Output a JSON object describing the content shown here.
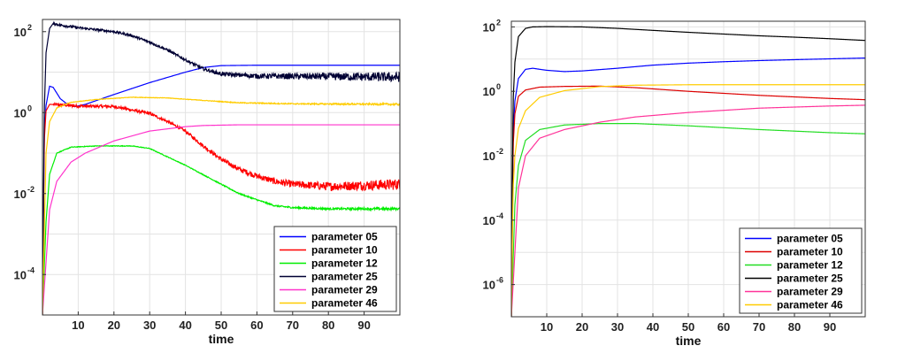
{
  "chart_data": [
    {
      "type": "line",
      "title": "",
      "xlabel": "time",
      "ylabel": "",
      "xlim": [
        0,
        100
      ],
      "ylim": [
        1e-05,
        200
      ],
      "yscale": "log",
      "grid": true,
      "legend_position": "bottom-right",
      "x_ticks": [
        "10",
        "20",
        "30",
        "40",
        "50",
        "60",
        "70",
        "80",
        "90"
      ],
      "y_ticks": [
        {
          "base": "10",
          "exp": "2",
          "value": 100
        },
        {
          "base": "10",
          "exp": "0",
          "value": 1
        },
        {
          "base": "10",
          "exp": "-2",
          "value": 0.01
        },
        {
          "base": "10",
          "exp": "-4",
          "value": 0.0001
        }
      ],
      "series": [
        {
          "name": "parameter 05",
          "color": "#0000ff",
          "noise": 0,
          "points": [
            [
              0,
              1e-05
            ],
            [
              0.5,
              0.3
            ],
            [
              1,
              1.5
            ],
            [
              2,
              4.5
            ],
            [
              3,
              4.2
            ],
            [
              5,
              2.2
            ],
            [
              7,
              1.6
            ],
            [
              9,
              1.4
            ],
            [
              12,
              1.6
            ],
            [
              20,
              2.8
            ],
            [
              30,
              5.5
            ],
            [
              40,
              10
            ],
            [
              45,
              13
            ],
            [
              50,
              14.5
            ],
            [
              60,
              14.8
            ],
            [
              80,
              14.8
            ],
            [
              100,
              14.8
            ]
          ]
        },
        {
          "name": "parameter 10",
          "color": "#ff0000",
          "noise": 0.035,
          "points": [
            [
              0,
              1e-05
            ],
            [
              0.5,
              0.2
            ],
            [
              1,
              1.1
            ],
            [
              2,
              1.6
            ],
            [
              5,
              1.55
            ],
            [
              10,
              1.45
            ],
            [
              20,
              1.42
            ],
            [
              30,
              0.95
            ],
            [
              35,
              0.6
            ],
            [
              40,
              0.35
            ],
            [
              45,
              0.15
            ],
            [
              50,
              0.07
            ],
            [
              55,
              0.04
            ],
            [
              60,
              0.027
            ],
            [
              65,
              0.02
            ],
            [
              70,
              0.017
            ],
            [
              80,
              0.015
            ],
            [
              90,
              0.016
            ],
            [
              100,
              0.017
            ]
          ]
        },
        {
          "name": "parameter 12",
          "color": "#00ee00",
          "noise": 0.008,
          "points": [
            [
              0,
              1e-05
            ],
            [
              1,
              0.002
            ],
            [
              2,
              0.03
            ],
            [
              4,
              0.1
            ],
            [
              8,
              0.14
            ],
            [
              15,
              0.15
            ],
            [
              25,
              0.15
            ],
            [
              30,
              0.13
            ],
            [
              40,
              0.05
            ],
            [
              50,
              0.017
            ],
            [
              55,
              0.01
            ],
            [
              60,
              0.007
            ],
            [
              65,
              0.005
            ],
            [
              70,
              0.0045
            ],
            [
              80,
              0.0042
            ],
            [
              100,
              0.0042
            ]
          ]
        },
        {
          "name": "parameter 25",
          "color": "#000033",
          "noise": 0.03,
          "points": [
            [
              0,
              1e-05
            ],
            [
              0.5,
              1
            ],
            [
              1,
              30
            ],
            [
              2,
              120
            ],
            [
              3,
              160
            ],
            [
              5,
              145
            ],
            [
              10,
              125
            ],
            [
              20,
              100
            ],
            [
              25,
              80
            ],
            [
              30,
              55
            ],
            [
              35,
              35
            ],
            [
              40,
              20
            ],
            [
              45,
              12
            ],
            [
              50,
              9
            ],
            [
              60,
              8
            ],
            [
              80,
              7.8
            ],
            [
              100,
              7.5
            ]
          ]
        },
        {
          "name": "parameter 29",
          "color": "#ff33cc",
          "noise": 0,
          "points": [
            [
              0,
              1e-05
            ],
            [
              1,
              0.0002
            ],
            [
              2,
              0.004
            ],
            [
              4,
              0.02
            ],
            [
              8,
              0.06
            ],
            [
              12,
              0.1
            ],
            [
              20,
              0.2
            ],
            [
              30,
              0.35
            ],
            [
              40,
              0.45
            ],
            [
              45,
              0.48
            ],
            [
              55,
              0.5
            ],
            [
              100,
              0.5
            ]
          ]
        },
        {
          "name": "parameter 46",
          "color": "#ffcc00",
          "noise": 0.006,
          "points": [
            [
              0,
              1e-05
            ],
            [
              1,
              0.1
            ],
            [
              2,
              0.6
            ],
            [
              4,
              1.3
            ],
            [
              8,
              1.8
            ],
            [
              15,
              2.1
            ],
            [
              25,
              2.4
            ],
            [
              35,
              2.3
            ],
            [
              45,
              2.0
            ],
            [
              55,
              1.75
            ],
            [
              70,
              1.65
            ],
            [
              100,
              1.6
            ]
          ]
        }
      ]
    },
    {
      "type": "line",
      "title": "",
      "xlabel": "time",
      "ylabel": "",
      "xlim": [
        0,
        100
      ],
      "ylim": [
        1e-07,
        150
      ],
      "yscale": "log",
      "grid": true,
      "legend_position": "bottom-right",
      "x_ticks": [
        "10",
        "20",
        "30",
        "40",
        "50",
        "60",
        "70",
        "80",
        "90"
      ],
      "y_ticks": [
        {
          "base": "10",
          "exp": "2",
          "value": 100
        },
        {
          "base": "10",
          "exp": "0",
          "value": 1
        },
        {
          "base": "10",
          "exp": "-2",
          "value": 0.01
        },
        {
          "base": "10",
          "exp": "-4",
          "value": 0.0001
        },
        {
          "base": "10",
          "exp": "-6",
          "value": 1e-06
        }
      ],
      "series": [
        {
          "name": "parameter 05",
          "color": "#0000ff",
          "noise": 0,
          "points": [
            [
              0,
              1e-07
            ],
            [
              0.5,
              0.05
            ],
            [
              1,
              0.5
            ],
            [
              2,
              2.5
            ],
            [
              4,
              4.8
            ],
            [
              6,
              5.2
            ],
            [
              10,
              4.5
            ],
            [
              15,
              4.1
            ],
            [
              20,
              4.3
            ],
            [
              30,
              5.2
            ],
            [
              40,
              6.5
            ],
            [
              50,
              7.5
            ],
            [
              60,
              8.3
            ],
            [
              70,
              9
            ],
            [
              80,
              9.6
            ],
            [
              90,
              10.2
            ],
            [
              100,
              10.8
            ]
          ]
        },
        {
          "name": "parameter 10",
          "color": "#dd0000",
          "noise": 0,
          "points": [
            [
              0,
              1e-07
            ],
            [
              0.5,
              0.02
            ],
            [
              1,
              0.2
            ],
            [
              2,
              0.7
            ],
            [
              4,
              1.1
            ],
            [
              8,
              1.35
            ],
            [
              15,
              1.42
            ],
            [
              25,
              1.45
            ],
            [
              35,
              1.3
            ],
            [
              50,
              1.0
            ],
            [
              70,
              0.75
            ],
            [
              90,
              0.6
            ],
            [
              100,
              0.55
            ]
          ]
        },
        {
          "name": "parameter 12",
          "color": "#22dd22",
          "noise": 0,
          "points": [
            [
              0,
              1e-07
            ],
            [
              1,
              0.0003
            ],
            [
              2,
              0.005
            ],
            [
              4,
              0.03
            ],
            [
              8,
              0.065
            ],
            [
              15,
              0.09
            ],
            [
              25,
              0.1
            ],
            [
              35,
              0.1
            ],
            [
              50,
              0.085
            ],
            [
              70,
              0.065
            ],
            [
              90,
              0.052
            ],
            [
              100,
              0.048
            ]
          ]
        },
        {
          "name": "parameter 25",
          "color": "#000000",
          "noise": 0,
          "points": [
            [
              0,
              1e-07
            ],
            [
              0.5,
              0.5
            ],
            [
              1,
              8
            ],
            [
              2,
              50
            ],
            [
              4,
              90
            ],
            [
              6,
              100
            ],
            [
              10,
              102
            ],
            [
              20,
              100
            ],
            [
              30,
              90
            ],
            [
              40,
              78
            ],
            [
              50,
              68
            ],
            [
              60,
              60
            ],
            [
              70,
              53
            ],
            [
              80,
              48
            ],
            [
              90,
              43
            ],
            [
              100,
              38
            ]
          ]
        },
        {
          "name": "parameter 29",
          "color": "#ff3399",
          "noise": 0,
          "points": [
            [
              0,
              1e-07
            ],
            [
              1,
              1e-05
            ],
            [
              2,
              0.001
            ],
            [
              4,
              0.01
            ],
            [
              8,
              0.035
            ],
            [
              15,
              0.065
            ],
            [
              25,
              0.11
            ],
            [
              35,
              0.16
            ],
            [
              50,
              0.22
            ],
            [
              70,
              0.3
            ],
            [
              90,
              0.35
            ],
            [
              100,
              0.37
            ]
          ]
        },
        {
          "name": "parameter 46",
          "color": "#ffcc00",
          "noise": 0,
          "points": [
            [
              0,
              1e-07
            ],
            [
              0.5,
              0.001
            ],
            [
              1,
              0.01
            ],
            [
              2,
              0.07
            ],
            [
              4,
              0.25
            ],
            [
              8,
              0.65
            ],
            [
              15,
              1.05
            ],
            [
              25,
              1.4
            ],
            [
              35,
              1.55
            ],
            [
              50,
              1.6
            ],
            [
              70,
              1.6
            ],
            [
              100,
              1.6
            ]
          ]
        }
      ]
    }
  ]
}
